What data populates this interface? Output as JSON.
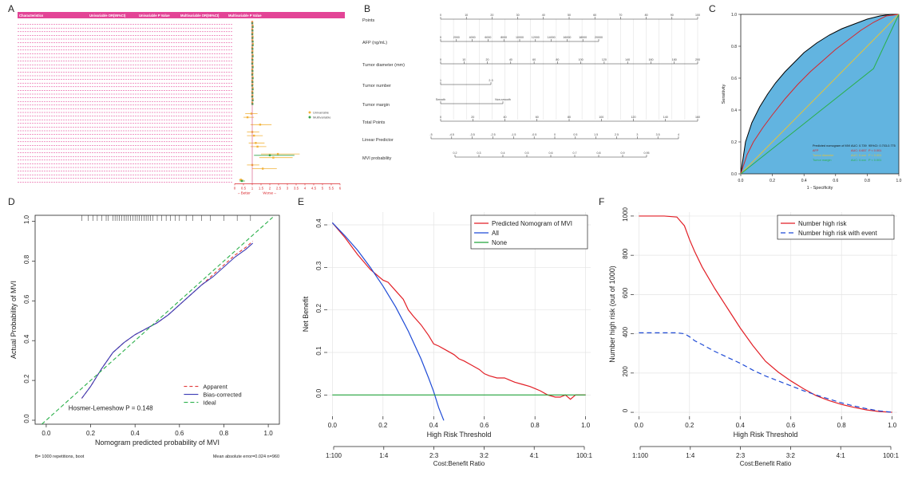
{
  "panel_labels": [
    "A",
    "B",
    "C",
    "D",
    "E",
    "F"
  ],
  "chart_data": [
    {
      "id": "A",
      "type": "table",
      "columns": [
        "Characteristics",
        "Univariable OR(95%CI)",
        "Univariable P Value",
        "Multivariable OR(95%CI)",
        "Multivariable P Value"
      ],
      "x_ticks": [
        "0",
        "0.5",
        "1",
        "1.5",
        "2",
        "2.5",
        "3",
        "3.5",
        "4",
        "4.5",
        "5",
        "5.5",
        "6"
      ],
      "xlim": [
        0,
        6
      ],
      "arrows": {
        "left": "←Better",
        "right": "Worse→"
      },
      "legend": [
        "Univariable",
        "Multivariable"
      ],
      "colors": {
        "univariable": "#f2b33d",
        "multivariable": "#35a24b",
        "rows": "#e0308b",
        "text": "#2a8ad6"
      },
      "rows": [
        {
          "u": 1.0,
          "m": 1.0,
          "ul": 0.99,
          "uh": 1.01,
          "ml": 0.99,
          "mh": 1.01
        },
        {
          "u": 1.02,
          "m": 1.02,
          "ul": 0.99,
          "uh": 1.06,
          "ml": 0.99,
          "mh": 1.06
        },
        {
          "u": 1.0,
          "m": 1.01,
          "ul": 0.98,
          "uh": 1.03,
          "ml": 0.98,
          "mh": 1.04
        },
        {
          "u": 1.01,
          "m": 1.0,
          "ul": 0.98,
          "uh": 1.05,
          "ml": 0.97,
          "mh": 1.03
        },
        {
          "u": 1.02,
          "m": 1.01,
          "ul": 0.99,
          "uh": 1.06,
          "ml": 0.98,
          "mh": 1.04
        },
        {
          "u": 1.01,
          "m": 1.02,
          "ul": 0.98,
          "uh": 1.04,
          "ml": 0.99,
          "mh": 1.05
        },
        {
          "u": 1.03,
          "m": 1.02,
          "ul": 1.0,
          "uh": 1.07,
          "ml": 0.99,
          "mh": 1.06
        },
        {
          "u": 1.0,
          "m": 1.01,
          "ul": 0.97,
          "uh": 1.03,
          "ml": 0.98,
          "mh": 1.04
        },
        {
          "u": 1.01,
          "m": 1.0,
          "ul": 0.98,
          "uh": 1.05,
          "ml": 0.97,
          "mh": 1.03
        },
        {
          "u": 1.02,
          "m": 1.02,
          "ul": 0.99,
          "uh": 1.06,
          "ml": 0.99,
          "mh": 1.06
        },
        {
          "u": 1.0,
          "m": 1.01,
          "ul": 0.97,
          "uh": 1.03,
          "ml": 0.98,
          "mh": 1.04
        },
        {
          "u": 1.01,
          "m": 1.0,
          "ul": 0.98,
          "uh": 1.05,
          "ml": 0.97,
          "mh": 1.03
        },
        {
          "u": 1.02,
          "m": 1.02,
          "ul": 0.99,
          "uh": 1.06,
          "ml": 0.99,
          "mh": 1.06
        },
        {
          "u": 1.0,
          "m": 1.01,
          "ul": 0.97,
          "uh": 1.03,
          "ml": 0.98,
          "mh": 1.04
        },
        {
          "u": 1.01,
          "m": 1.0,
          "ul": 0.98,
          "uh": 1.05,
          "ml": 0.97,
          "mh": 1.03
        },
        {
          "u": 1.02,
          "m": 1.02,
          "ul": 0.99,
          "uh": 1.06,
          "ml": 0.99,
          "mh": 1.06
        },
        {
          "u": 1.0,
          "m": 1.01,
          "ul": 0.97,
          "uh": 1.03,
          "ml": 0.98,
          "mh": 1.04
        },
        {
          "u": 1.01,
          "m": 1.0,
          "ul": 0.98,
          "uh": 1.05,
          "ml": 0.97,
          "mh": 1.03
        },
        {
          "u": 1.02,
          "m": 1.02,
          "ul": 0.99,
          "uh": 1.06,
          "ml": 0.99,
          "mh": 1.06
        },
        {
          "u": 1.0,
          "m": 1.01,
          "ul": 0.97,
          "uh": 1.03,
          "ml": 0.98,
          "mh": 1.04
        },
        {
          "u": 1.01,
          "m": 1.0,
          "ul": 0.98,
          "uh": 1.05,
          "ml": 0.97,
          "mh": 1.03
        },
        {
          "u": 1.02,
          "m": 1.02,
          "ul": 0.99,
          "uh": 1.06,
          "ml": 0.99,
          "mh": 1.06
        },
        {
          "u": 1.0,
          "m": 1.01,
          "ul": 0.97,
          "uh": 1.03,
          "ml": 0.98,
          "mh": 1.04
        },
        {
          "u": null,
          "m": null
        },
        {
          "u": null,
          "m": null
        },
        {
          "u": 0.95,
          "m": null,
          "ul": 0.6,
          "uh": 1.3
        },
        {
          "u": 0.73,
          "m": null,
          "ul": 0.5,
          "uh": 1.1
        },
        {
          "u": null,
          "m": null
        },
        {
          "u": 1.45,
          "m": null,
          "ul": 0.9,
          "uh": 2.1
        },
        {
          "u": null,
          "m": null
        },
        {
          "u": 1.0,
          "m": null,
          "ul": 0.7,
          "uh": 1.4
        },
        {
          "u": 1.1,
          "m": null,
          "ul": 0.7,
          "uh": 1.6
        },
        {
          "u": null,
          "m": null
        },
        {
          "u": 1.2,
          "m": null,
          "ul": 0.8,
          "uh": 1.7
        },
        {
          "u": 1.3,
          "m": null,
          "ul": 0.9,
          "uh": 1.8
        },
        {
          "u": null,
          "m": null
        },
        {
          "u": 2.46,
          "m": 2.0,
          "ul": 1.5,
          "uh": 3.7,
          "ml": 1.1,
          "mh": 3.4
        },
        {
          "u": 2.2,
          "m": null,
          "ul": 1.4,
          "uh": 3.3
        },
        {
          "u": null,
          "m": null
        },
        {
          "u": 1.0,
          "m": null,
          "ul": 0.7,
          "uh": 1.4
        },
        {
          "u": 1.6,
          "m": null,
          "ul": 1.0,
          "uh": 2.4
        },
        {
          "u": null,
          "m": null
        },
        {
          "u": null,
          "m": null
        },
        {
          "u": 0.35,
          "m": 0.41,
          "ul": 0.25,
          "uh": 0.49,
          "ml": 0.28,
          "mh": 0.58
        }
      ]
    },
    {
      "id": "B",
      "type": "table",
      "rows": [
        {
          "label": "Points",
          "ticks": [
            "0",
            "10",
            "20",
            "30",
            "40",
            "50",
            "60",
            "70",
            "80",
            "90",
            "100"
          ]
        },
        {
          "label": "AFP (ng/mL)",
          "ticks": [
            "0",
            "2000",
            "4000",
            "6000",
            "8000",
            "10000",
            "12000",
            "14000",
            "16000",
            "18000",
            "20000"
          ]
        },
        {
          "label": "Tumor diameter (mm)",
          "ticks": [
            "0",
            "10",
            "20",
            "40",
            "60",
            "80",
            "100",
            "120",
            "140",
            "160",
            "180",
            "200"
          ]
        },
        {
          "label": "Tumor number",
          "ticks": [
            "1",
            "2-3"
          ]
        },
        {
          "label": "Tumor margin",
          "ticks": [
            "Smooth",
            "Non-smooth"
          ]
        },
        {
          "label": "Total Points",
          "ticks": [
            "0",
            "20",
            "40",
            "60",
            "80",
            "100",
            "120",
            "140",
            "160"
          ]
        },
        {
          "label": "Linear Predictor",
          "ticks": [
            "-5",
            "-4.5",
            "-3.5",
            "-2.5",
            "-1.5",
            "-0.5",
            "0",
            "0.5",
            "1.5",
            "2.5",
            "3",
            "3.5",
            "4"
          ]
        },
        {
          "label": "MVI probability",
          "ticks": [
            "0.2",
            "0.3",
            "0.4",
            "0.5",
            "0.6",
            "0.7",
            "0.8",
            "0.9",
            "0.95"
          ]
        }
      ]
    },
    {
      "id": "C",
      "type": "line",
      "xlabel": "1 - Specificity",
      "ylabel": "Sensitivity",
      "xlim": [
        1,
        0
      ],
      "ylim": [
        0,
        1
      ],
      "x_ticks": [
        "1.0",
        "0.8",
        "0.6",
        "0.4",
        "0.2",
        "0.0"
      ],
      "y_ticks": [
        "0.0",
        "0.2",
        "0.4",
        "0.6",
        "0.8",
        "1.0"
      ],
      "legend": {
        "position": "bottom-right"
      },
      "series": [
        {
          "name": "Predicted nomogram of MVI",
          "auc_text": "AUC: 0.739",
          "p_text": "95%CI: 0.703-0.775",
          "color": "#000000",
          "x": [
            1.0,
            0.97,
            0.93,
            0.88,
            0.83,
            0.78,
            0.72,
            0.66,
            0.6,
            0.52,
            0.44,
            0.36,
            0.28,
            0.2,
            0.12,
            0.05,
            0.0
          ],
          "y": [
            0.0,
            0.2,
            0.32,
            0.42,
            0.5,
            0.57,
            0.64,
            0.7,
            0.76,
            0.82,
            0.87,
            0.91,
            0.94,
            0.97,
            0.99,
            1.0,
            1.0
          ]
        },
        {
          "name": "AFP",
          "auc_text": "AUC: 0.657",
          "p_text": "P < 0.001",
          "color": "#d9262b",
          "x": [
            1.0,
            0.96,
            0.92,
            0.86,
            0.8,
            0.72,
            0.64,
            0.56,
            0.48,
            0.4,
            0.32,
            0.24,
            0.16,
            0.08,
            0.0
          ],
          "y": [
            0.0,
            0.12,
            0.2,
            0.29,
            0.37,
            0.47,
            0.56,
            0.64,
            0.71,
            0.78,
            0.84,
            0.9,
            0.95,
            0.99,
            1.0
          ]
        },
        {
          "name": "Tumor diameter",
          "auc_text": "AUC: 0.xxx",
          "p_text": "P < 0.001",
          "color": "#e3c33b",
          "x": [
            1.0,
            0.0
          ],
          "y": [
            0.0,
            1.0
          ]
        },
        {
          "name": "Tumor margin",
          "auc_text": "AUC: 0.xxx",
          "p_text": "P < 0.001",
          "color": "#2bb04a",
          "x": [
            1.0,
            0.16,
            0.0
          ],
          "y": [
            0.0,
            0.66,
            1.0
          ]
        }
      ]
    },
    {
      "id": "D",
      "type": "line",
      "xlabel": "Nomogram predicted probability of MVI",
      "ylabel": "Actual Probability of MVI",
      "xlim": [
        -0.05,
        1.05
      ],
      "ylim": [
        -0.02,
        1.03
      ],
      "x_ticks": [
        0.0,
        0.2,
        0.4,
        0.6,
        0.8,
        1.0
      ],
      "y_ticks": [
        0.0,
        0.2,
        0.4,
        0.6,
        0.8,
        1.0
      ],
      "annotation": "Hosmer-Lemeshow  P = 0.148",
      "footer_left": "B= 1000 repetitions, boot",
      "footer_right": "Mean absolute error=0.024 n=960",
      "legend": {
        "position": "bottom-right"
      },
      "rug": [
        0.16,
        0.19,
        0.21,
        0.23,
        0.25,
        0.27,
        0.28,
        0.3,
        0.31,
        0.32,
        0.33,
        0.34,
        0.35,
        0.36,
        0.37,
        0.38,
        0.39,
        0.4,
        0.41,
        0.42,
        0.43,
        0.44,
        0.45,
        0.46,
        0.47,
        0.48,
        0.5,
        0.52,
        0.54,
        0.56,
        0.58,
        0.6,
        0.63,
        0.66,
        0.7,
        0.74,
        0.8,
        0.86,
        0.92
      ],
      "series": [
        {
          "name": "Apparent",
          "color": "#e23b3b",
          "dash": "4,3",
          "x": [
            0.16,
            0.2,
            0.25,
            0.3,
            0.35,
            0.4,
            0.45,
            0.5,
            0.55,
            0.6,
            0.65,
            0.7,
            0.75,
            0.8,
            0.85,
            0.9,
            0.93
          ],
          "y": [
            0.11,
            0.17,
            0.26,
            0.34,
            0.39,
            0.43,
            0.46,
            0.49,
            0.53,
            0.58,
            0.63,
            0.68,
            0.73,
            0.78,
            0.83,
            0.87,
            0.9
          ]
        },
        {
          "name": "Bias-corrected",
          "color": "#3a3ab5",
          "dash": "",
          "x": [
            0.16,
            0.2,
            0.25,
            0.3,
            0.35,
            0.4,
            0.45,
            0.5,
            0.55,
            0.6,
            0.65,
            0.7,
            0.75,
            0.8,
            0.85,
            0.9,
            0.93
          ],
          "y": [
            0.11,
            0.17,
            0.26,
            0.34,
            0.39,
            0.43,
            0.46,
            0.49,
            0.53,
            0.58,
            0.63,
            0.68,
            0.72,
            0.77,
            0.82,
            0.86,
            0.89
          ]
        },
        {
          "name": "Ideal",
          "color": "#2bb04a",
          "dash": "5,3",
          "x": [
            -0.02,
            1.02
          ],
          "y": [
            -0.02,
            1.02
          ]
        }
      ]
    },
    {
      "id": "E",
      "type": "line",
      "xlabel": "High Risk Threshold",
      "ylabel": "Net Benefit",
      "xlim": [
        -0.02,
        1.02
      ],
      "ylim": [
        -0.05,
        0.43
      ],
      "x_ticks": [
        0.0,
        0.2,
        0.4,
        0.6,
        0.8,
        1.0
      ],
      "y_ticks": [
        0.0,
        0.1,
        0.2,
        0.3,
        0.4
      ],
      "cost_ticks": [
        "1:100",
        "1:4",
        "2:3",
        "3:2",
        "4:1",
        "100:1"
      ],
      "cost_label": "Cost:Benefit Ratio",
      "legend": {
        "position": "top-right"
      },
      "series": [
        {
          "name": "Predicted Nomogram of MVI",
          "color": "#e21f26",
          "x": [
            0.0,
            0.05,
            0.1,
            0.15,
            0.18,
            0.2,
            0.22,
            0.25,
            0.28,
            0.3,
            0.32,
            0.35,
            0.38,
            0.4,
            0.42,
            0.45,
            0.48,
            0.5,
            0.52,
            0.55,
            0.58,
            0.6,
            0.62,
            0.65,
            0.68,
            0.7,
            0.72,
            0.75,
            0.78,
            0.8,
            0.82,
            0.85,
            0.88,
            0.9,
            0.92,
            0.94,
            0.96,
            0.98,
            1.0
          ],
          "y": [
            0.405,
            0.37,
            0.33,
            0.295,
            0.28,
            0.27,
            0.265,
            0.245,
            0.225,
            0.2,
            0.185,
            0.165,
            0.14,
            0.12,
            0.115,
            0.105,
            0.095,
            0.085,
            0.08,
            0.07,
            0.06,
            0.05,
            0.045,
            0.04,
            0.04,
            0.035,
            0.03,
            0.025,
            0.02,
            0.015,
            0.01,
            0.0,
            -0.005,
            -0.005,
            0.0,
            -0.01,
            0.0,
            0.0,
            0.0
          ]
        },
        {
          "name": "All",
          "color": "#1f4bd6",
          "x": [
            0.0,
            0.05,
            0.1,
            0.15,
            0.2,
            0.25,
            0.3,
            0.35,
            0.38,
            0.4,
            0.42,
            0.44
          ],
          "y": [
            0.405,
            0.374,
            0.34,
            0.3,
            0.256,
            0.207,
            0.15,
            0.085,
            0.04,
            0.008,
            -0.03,
            -0.06
          ]
        },
        {
          "name": "None",
          "color": "#22a33a",
          "x": [
            0.0,
            1.0
          ],
          "y": [
            0.0,
            0.0
          ]
        }
      ]
    },
    {
      "id": "F",
      "type": "line",
      "xlabel": "High Risk Threshold",
      "ylabel": "Number high risk (out of 1000)",
      "xlim": [
        -0.02,
        1.02
      ],
      "ylim": [
        -20,
        1020
      ],
      "x_ticks": [
        0.0,
        0.2,
        0.4,
        0.6,
        0.8,
        1.0
      ],
      "y_ticks": [
        0,
        200,
        400,
        600,
        800,
        1000
      ],
      "cost_ticks": [
        "1:100",
        "1:4",
        "2:3",
        "3:2",
        "4:1",
        "100:1"
      ],
      "cost_label": "Cost:Benefit Ratio",
      "legend": {
        "position": "top-right"
      },
      "series": [
        {
          "name": "Number high risk",
          "color": "#e21f26",
          "dash": "",
          "x": [
            0.0,
            0.05,
            0.1,
            0.15,
            0.18,
            0.2,
            0.22,
            0.25,
            0.3,
            0.35,
            0.4,
            0.45,
            0.5,
            0.55,
            0.6,
            0.65,
            0.7,
            0.75,
            0.8,
            0.85,
            0.9,
            0.95,
            1.0
          ],
          "y": [
            1000,
            1000,
            1000,
            995,
            950,
            880,
            820,
            740,
            630,
            530,
            430,
            340,
            260,
            205,
            160,
            120,
            85,
            60,
            40,
            25,
            12,
            4,
            0
          ]
        },
        {
          "name": "Number high risk with event",
          "color": "#1f4bd6",
          "dash": "6,4",
          "x": [
            0.0,
            0.05,
            0.1,
            0.15,
            0.18,
            0.2,
            0.22,
            0.25,
            0.3,
            0.35,
            0.4,
            0.45,
            0.5,
            0.55,
            0.6,
            0.65,
            0.7,
            0.75,
            0.8,
            0.85,
            0.9,
            0.95,
            1.0
          ],
          "y": [
            405,
            405,
            405,
            405,
            400,
            385,
            365,
            345,
            310,
            280,
            250,
            215,
            185,
            160,
            135,
            110,
            88,
            68,
            48,
            32,
            18,
            7,
            0
          ]
        }
      ]
    }
  ]
}
